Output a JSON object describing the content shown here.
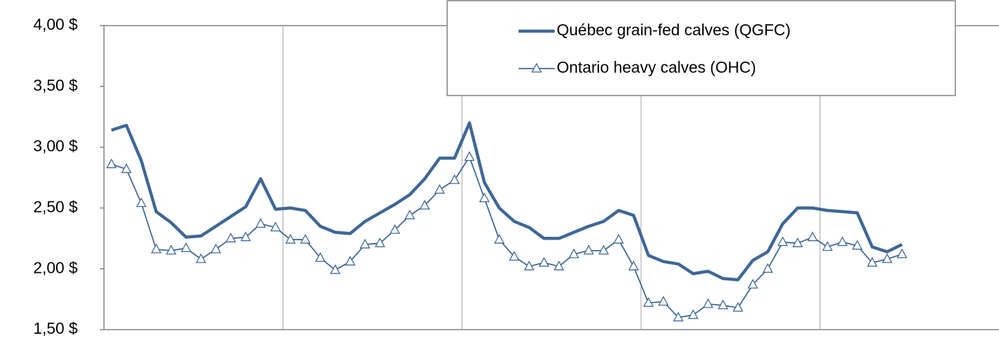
{
  "chart_data": {
    "type": "line",
    "categories": [
      null,
      null,
      null,
      null,
      null,
      null,
      null,
      null,
      null,
      null,
      null,
      null,
      null,
      null,
      null,
      null,
      null,
      null,
      null,
      null,
      null,
      null,
      null,
      null,
      null,
      null,
      null,
      null,
      null,
      null,
      null,
      null,
      null,
      null,
      null,
      null,
      null,
      null,
      null,
      null,
      null,
      null,
      null,
      null,
      null,
      null,
      null,
      null,
      null,
      null,
      null,
      null,
      null,
      null,
      null,
      null,
      null,
      null,
      null,
      null
    ],
    "series": [
      {
        "name": "Québec grain-fed calves (QGFC)",
        "color": "#3f6796",
        "marker": "none",
        "values": [
          3.14,
          3.18,
          2.89,
          2.47,
          2.38,
          2.26,
          2.27,
          2.35,
          2.43,
          2.51,
          2.74,
          2.49,
          2.5,
          2.48,
          2.35,
          2.3,
          2.29,
          2.39,
          2.46,
          2.53,
          2.61,
          2.74,
          2.91,
          2.91,
          3.2,
          2.71,
          2.5,
          2.39,
          2.34,
          2.25,
          2.25,
          2.3,
          2.35,
          2.39,
          2.48,
          2.44,
          2.11,
          2.06,
          2.04,
          1.96,
          1.98,
          1.92,
          1.91,
          2.07,
          2.14,
          2.37,
          2.5,
          2.5,
          2.48,
          2.47,
          2.46,
          2.18,
          2.14,
          2.2,
          null,
          null,
          null,
          null,
          null,
          null
        ]
      },
      {
        "name": "Ontario heavy calves (OHC)",
        "color": "#3f6796",
        "marker": "triangle",
        "values": [
          2.86,
          2.82,
          2.54,
          2.16,
          2.15,
          2.17,
          2.08,
          2.16,
          2.25,
          2.26,
          2.37,
          2.34,
          2.24,
          2.24,
          2.09,
          1.99,
          2.06,
          2.2,
          2.21,
          2.32,
          2.44,
          2.52,
          2.65,
          2.73,
          2.92,
          2.58,
          2.24,
          2.1,
          2.02,
          2.05,
          2.02,
          2.12,
          2.15,
          2.15,
          2.24,
          2.02,
          1.72,
          1.73,
          1.6,
          1.62,
          1.71,
          1.7,
          1.68,
          1.87,
          2.0,
          2.22,
          2.21,
          2.26,
          2.18,
          2.22,
          2.19,
          2.05,
          2.08,
          2.12,
          null,
          null,
          null,
          null,
          null,
          null
        ]
      }
    ],
    "ylim": [
      1.5,
      4
    ],
    "yticks": [
      {
        "value": 1.5,
        "label": "1,50  $"
      },
      {
        "value": 2,
        "label": "2,00  $"
      },
      {
        "value": 2.5,
        "label": "2,50  $"
      },
      {
        "value": 3,
        "label": "3,00  $"
      },
      {
        "value": 3.5,
        "label": "3,50  $"
      },
      {
        "value": 4,
        "label": "4,00  $"
      }
    ],
    "legend": "top-right"
  }
}
